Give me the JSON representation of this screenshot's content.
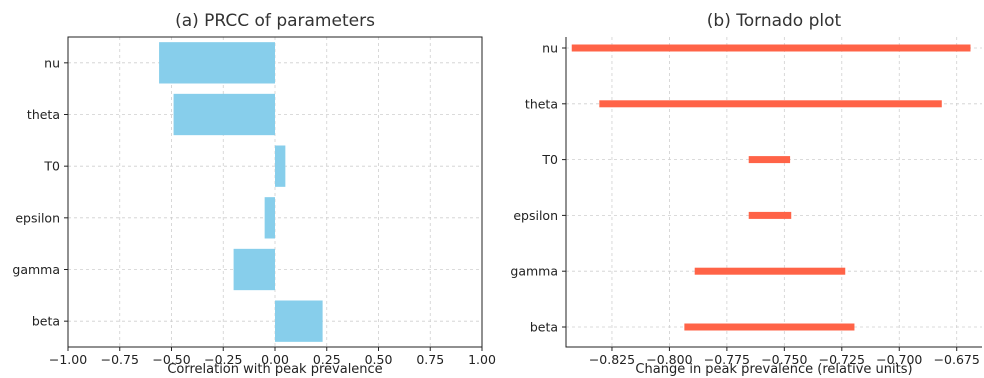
{
  "chart_data": [
    {
      "type": "bar",
      "orientation": "horizontal",
      "title": "(a) PRCC of parameters",
      "xlabel": "Correlation with peak prevalence",
      "ylabel": "",
      "xlim": [
        -1.0,
        1.0
      ],
      "xticks": [
        "-1.00",
        "-0.75",
        "-0.50",
        "-0.25",
        "0.00",
        "0.25",
        "0.50",
        "0.75",
        "1.00"
      ],
      "xtick_values": [
        -1.0,
        -0.75,
        -0.5,
        -0.25,
        0.0,
        0.25,
        0.5,
        0.75,
        1.0
      ],
      "categories": [
        "beta",
        "gamma",
        "epsilon",
        "T0",
        "theta",
        "nu"
      ],
      "values": [
        0.23,
        -0.2,
        -0.05,
        0.05,
        -0.49,
        -0.56
      ],
      "color": "#87CEEB",
      "grid": true
    },
    {
      "type": "range",
      "title": "(b) Tornado plot",
      "xlabel": "Change in peak prevalence (relative units)",
      "ylabel": "",
      "xlim": [
        -0.845,
        -0.664
      ],
      "xticks": [
        "-0.825",
        "-0.800",
        "-0.775",
        "-0.750",
        "-0.725",
        "-0.700",
        "-0.675"
      ],
      "xtick_values": [
        -0.825,
        -0.8,
        -0.775,
        -0.75,
        -0.725,
        -0.7,
        -0.675
      ],
      "categories": [
        "beta",
        "gamma",
        "epsilon",
        "T0",
        "theta",
        "nu"
      ],
      "ranges": [
        [
          -0.7935,
          -0.7195
        ],
        [
          -0.789,
          -0.7235
        ],
        [
          -0.7655,
          -0.747
        ],
        [
          -0.7655,
          -0.7475
        ],
        [
          -0.8305,
          -0.6815
        ],
        [
          -0.8425,
          -0.669
        ]
      ],
      "color": "#FF6347",
      "grid": true
    }
  ]
}
